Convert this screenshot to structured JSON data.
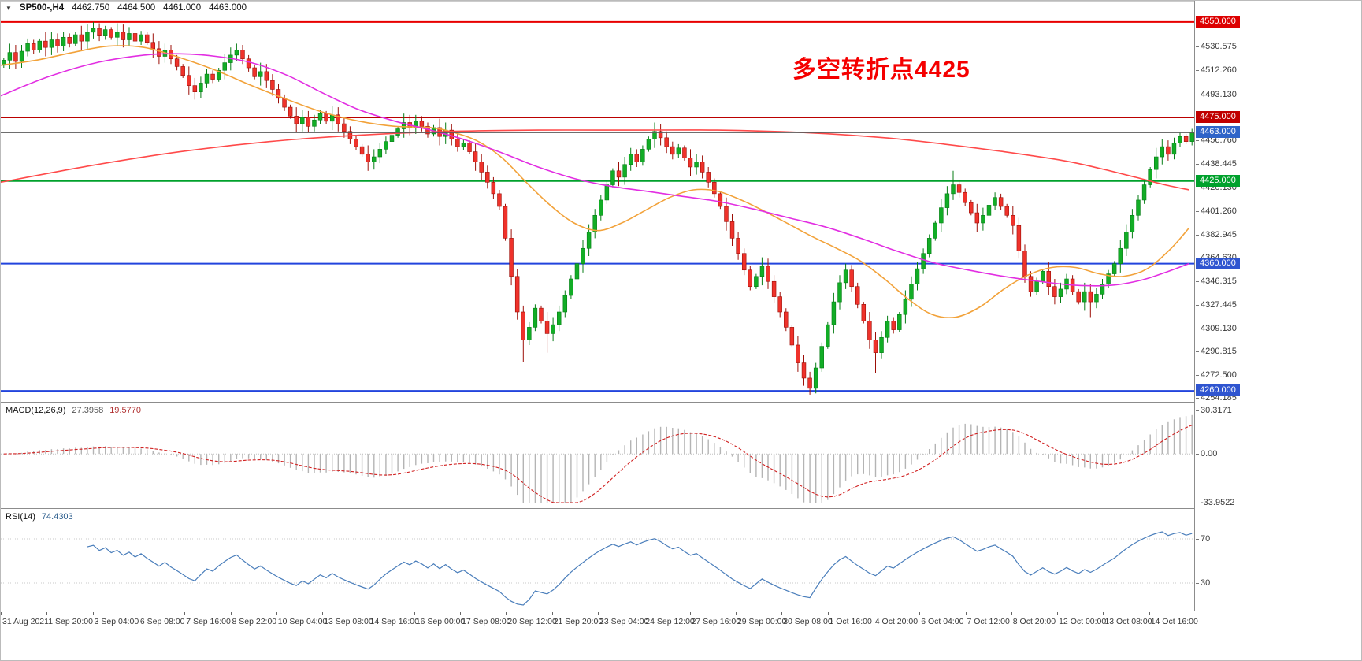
{
  "header": {
    "expander": "▼",
    "symbol_period": "SP500-,H4",
    "open": "4462.750",
    "high": "4464.500",
    "low": "4461.000",
    "close": "4463.000"
  },
  "annotation": {
    "text": "多空转折点4425",
    "color": "#f50000"
  },
  "indicators": {
    "macd": {
      "label": "MACD(12,26,9)",
      "value_main": "27.3958",
      "value_signal": "19.5770"
    },
    "rsi": {
      "label": "RSI(14)",
      "value": "74.4303"
    }
  },
  "price_axis": {
    "plain_ticks": [
      "4530.575",
      "4512.260",
      "4493.130",
      "4456.760",
      "4438.445",
      "4420.130",
      "4401.260",
      "4382.945",
      "4364.630",
      "4346.315",
      "4327.445",
      "4309.130",
      "4290.815",
      "4272.500",
      "4254.185"
    ]
  },
  "chart_data": [
    {
      "type": "candlestick",
      "title": "SP500-,H4",
      "ylim": [
        4252,
        4558
      ],
      "x_labels": [
        "31 Aug 2021",
        "1 Sep 20:00",
        "3 Sep 04:00",
        "6 Sep 08:00",
        "7 Sep 16:00",
        "8 Sep 22:00",
        "10 Sep 04:00",
        "13 Sep 08:00",
        "14 Sep 16:00",
        "16 Sep 00:00",
        "17 Sep 08:00",
        "20 Sep 12:00",
        "21 Sep 20:00",
        "23 Sep 04:00",
        "24 Sep 12:00",
        "27 Sep 16:00",
        "29 Sep 00:00",
        "30 Sep 08:00",
        "1 Oct 16:00",
        "4 Oct 20:00",
        "6 Oct 04:00",
        "7 Oct 12:00",
        "8 Oct 20:00",
        "12 Oct 00:00",
        "13 Oct 08:00",
        "14 Oct 16:00"
      ],
      "first_open": 4516,
      "closes": [
        4520,
        4526,
        4519,
        4527,
        4533,
        4528,
        4535,
        4530,
        4536,
        4531,
        4538,
        4533,
        4540,
        4535,
        4542,
        4545,
        4539,
        4544,
        4538,
        4542,
        4536,
        4541,
        4535,
        4540,
        4534,
        4529,
        4523,
        4528,
        4521,
        4515,
        4508,
        4500,
        4495,
        4502,
        4509,
        4505,
        4512,
        4518,
        4524,
        4528,
        4521,
        4514,
        4507,
        4511,
        4504,
        4497,
        4490,
        4483,
        4476,
        4470,
        4475,
        4468,
        4473,
        4478,
        4472,
        4477,
        4470,
        4464,
        4458,
        4452,
        4446,
        4440,
        4444,
        4450,
        4456,
        4461,
        4466,
        4471,
        4467,
        4472,
        4468,
        4462,
        4467,
        4460,
        4465,
        4458,
        4452,
        4455,
        4448,
        4440,
        4432,
        4424,
        4415,
        4405,
        4380,
        4350,
        4322,
        4300,
        4310,
        4325,
        4315,
        4305,
        4312,
        4322,
        4335,
        4348,
        4360,
        4372,
        4385,
        4398,
        4410,
        4422,
        4433,
        4428,
        4438,
        4446,
        4440,
        4450,
        4458,
        4464,
        4459,
        4452,
        4446,
        4451,
        4443,
        4436,
        4440,
        4432,
        4424,
        4415,
        4405,
        4393,
        4380,
        4368,
        4355,
        4342,
        4350,
        4358,
        4346,
        4334,
        4322,
        4310,
        4296,
        4282,
        4270,
        4262,
        4278,
        4295,
        4312,
        4330,
        4345,
        4355,
        4342,
        4328,
        4315,
        4300,
        4290,
        4302,
        4315,
        4308,
        4320,
        4332,
        4344,
        4356,
        4368,
        4380,
        4392,
        4404,
        4415,
        4422,
        4416,
        4408,
        4400,
        4392,
        4398,
        4406,
        4412,
        4405,
        4398,
        4390,
        4370,
        4350,
        4338,
        4346,
        4354,
        4342,
        4334,
        4340,
        4348,
        4338,
        4330,
        4338,
        4330,
        4336,
        4344,
        4352,
        4360,
        4372,
        4385,
        4398,
        4410,
        4422,
        4434,
        4444,
        4452,
        4446,
        4455,
        4460,
        4456,
        4463
      ],
      "lower_wick_boost": {
        "87": 12,
        "91": 8,
        "146": 10,
        "182": 6,
        "199": -4
      },
      "upper_wick_boost": {
        "159": 6,
        "199": -4
      },
      "up_color": "#12ad26",
      "down_color": "#ef322b",
      "levels": [
        {
          "price": 4550,
          "label": "4550.000",
          "line_color": "#e80000",
          "tag_bg": "#dd0000",
          "width": 2
        },
        {
          "price": 4475,
          "label": "4475.000",
          "line_color": "#bb0000",
          "tag_bg": "#c00000",
          "width": 2
        },
        {
          "price": 4463,
          "label": "4463.000",
          "line_color": "#5a5a5a",
          "tag_bg": "#2e64c8",
          "width": 1,
          "current": true
        },
        {
          "price": 4425,
          "label": "4425.000",
          "line_color": "#00a12c",
          "tag_bg": "#00a12c",
          "width": 2
        },
        {
          "price": 4360,
          "label": "4360.000",
          "line_color": "#2244dd",
          "tag_bg": "#2f55d0",
          "width": 2
        },
        {
          "price": 4260,
          "label": "4260.000",
          "line_color": "#2244dd",
          "tag_bg": "#2f55d0",
          "width": 2
        }
      ],
      "moving_averages": [
        {
          "name": "ma-line-orange",
          "color": "#f2a23a",
          "points": [
            [
              0,
              4516
            ],
            [
              6,
              4520
            ],
            [
              12,
              4526
            ],
            [
              18,
              4531
            ],
            [
              24,
              4530
            ],
            [
              30,
              4522
            ],
            [
              36,
              4512
            ],
            [
              42,
              4500
            ],
            [
              48,
              4489
            ],
            [
              54,
              4479
            ],
            [
              60,
              4472
            ],
            [
              66,
              4468
            ],
            [
              72,
              4467
            ],
            [
              76,
              4463
            ],
            [
              80,
              4456
            ],
            [
              84,
              4443
            ],
            [
              88,
              4424
            ],
            [
              92,
              4406
            ],
            [
              96,
              4392
            ],
            [
              100,
              4386
            ],
            [
              104,
              4392
            ],
            [
              108,
              4402
            ],
            [
              112,
              4412
            ],
            [
              116,
              4418
            ],
            [
              120,
              4417
            ],
            [
              124,
              4410
            ],
            [
              128,
              4401
            ],
            [
              132,
              4391
            ],
            [
              136,
              4381
            ],
            [
              140,
              4372
            ],
            [
              144,
              4362
            ],
            [
              148,
              4348
            ],
            [
              152,
              4332
            ],
            [
              156,
              4320
            ],
            [
              160,
              4318
            ],
            [
              164,
              4326
            ],
            [
              168,
              4340
            ],
            [
              172,
              4351
            ],
            [
              176,
              4357
            ],
            [
              180,
              4357
            ],
            [
              184,
              4352
            ],
            [
              188,
              4350
            ],
            [
              192,
              4356
            ],
            [
              196,
              4372
            ],
            [
              199,
              4388
            ]
          ]
        },
        {
          "name": "ma-line-magenta",
          "color": "#e22ee2",
          "points": [
            [
              0,
              4492
            ],
            [
              8,
              4507
            ],
            [
              16,
              4518
            ],
            [
              24,
              4524
            ],
            [
              30,
              4525
            ],
            [
              36,
              4523
            ],
            [
              42,
              4518
            ],
            [
              48,
              4508
            ],
            [
              54,
              4494
            ],
            [
              60,
              4481
            ],
            [
              66,
              4472
            ],
            [
              72,
              4465
            ],
            [
              78,
              4457
            ],
            [
              84,
              4447
            ],
            [
              90,
              4436
            ],
            [
              96,
              4427
            ],
            [
              102,
              4421
            ],
            [
              108,
              4417
            ],
            [
              114,
              4413
            ],
            [
              120,
              4409
            ],
            [
              126,
              4403
            ],
            [
              132,
              4396
            ],
            [
              138,
              4389
            ],
            [
              144,
              4380
            ],
            [
              150,
              4370
            ],
            [
              156,
              4361
            ],
            [
              162,
              4355
            ],
            [
              168,
              4350
            ],
            [
              174,
              4346
            ],
            [
              180,
              4343
            ],
            [
              186,
              4343
            ],
            [
              191,
              4347
            ],
            [
              195,
              4353
            ],
            [
              199,
              4360
            ]
          ]
        },
        {
          "name": "ma-line-red",
          "color": "#ff4a4a",
          "points": [
            [
              0,
              4424
            ],
            [
              15,
              4437
            ],
            [
              30,
              4448
            ],
            [
              45,
              4456
            ],
            [
              60,
              4461
            ],
            [
              75,
              4464
            ],
            [
              90,
              4465
            ],
            [
              105,
              4465
            ],
            [
              120,
              4465
            ],
            [
              135,
              4463
            ],
            [
              148,
              4459
            ],
            [
              158,
              4454
            ],
            [
              168,
              4448
            ],
            [
              178,
              4441
            ],
            [
              184,
              4435
            ],
            [
              190,
              4428
            ],
            [
              195,
              4422
            ],
            [
              199,
              4418
            ]
          ]
        }
      ]
    },
    {
      "type": "macd",
      "label": "MACD(12,26,9)",
      "fast": 12,
      "slow": 26,
      "signal": 9,
      "current_main": 27.3958,
      "current_signal": 19.577,
      "derived_from_closes": true,
      "histogram_color": "#b4b4b4",
      "signal_color": "#d02020",
      "y_ticks": [
        {
          "v": 30.3171,
          "label": "30.3171"
        },
        {
          "v": 0,
          "label": "0.00"
        },
        {
          "v": -33.9522,
          "label": "-33.9522"
        }
      ]
    },
    {
      "type": "rsi",
      "label": "RSI(14)",
      "period": 14,
      "current": 74.4303,
      "derived_from_closes": true,
      "line_color": "#4a7ebb",
      "range": [
        10,
        90
      ],
      "levels": [
        {
          "v": 70,
          "label": "70"
        },
        {
          "v": 30,
          "label": "30"
        }
      ]
    }
  ]
}
